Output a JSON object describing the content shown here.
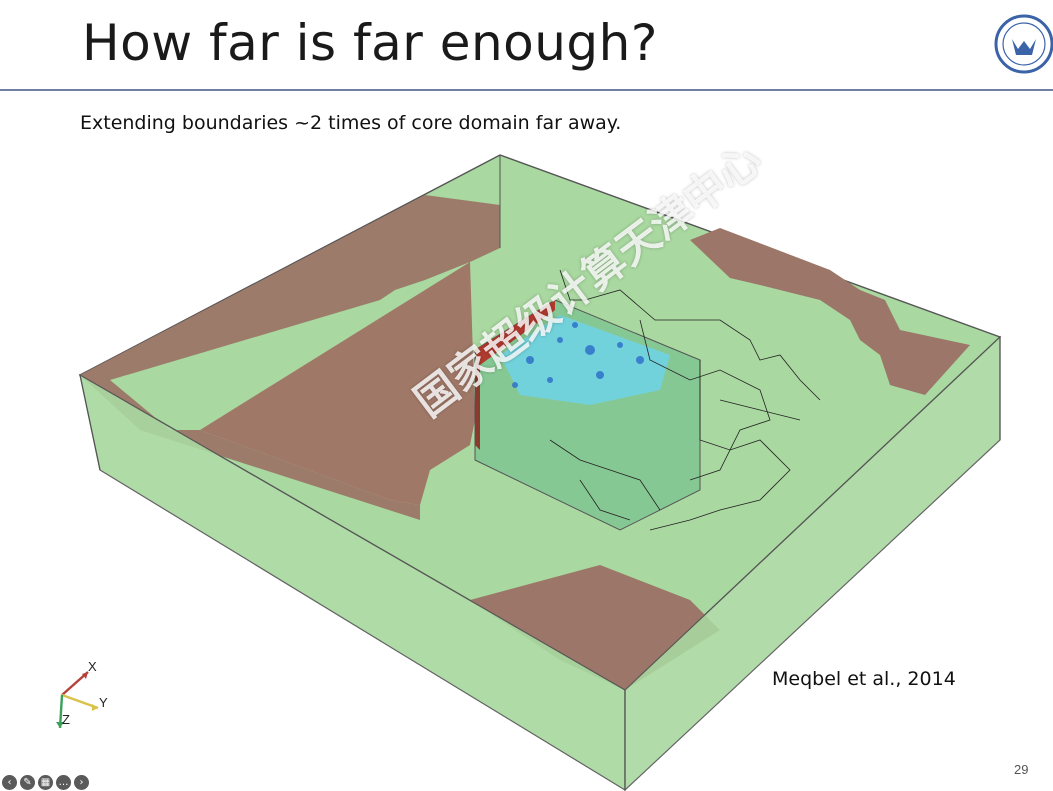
{
  "slide": {
    "title": "How far is far enough?",
    "subtitle": "Extending boundaries ~2 times of core domain far away.",
    "citation": "Meqbel et al., 2014",
    "page_number": "29",
    "watermark": "国家超级计算天津中心"
  },
  "axes_triad": {
    "x_label": "X",
    "y_label": "Y",
    "z_label": "Z"
  },
  "colors": {
    "green_face": "#9fd39a",
    "brown_face": "#9c7668",
    "core_blue": "#6fd4e8",
    "title_rule": "#6f7fa6"
  },
  "controls": [
    {
      "name": "previous-slide-button",
      "icon": "arrow-left-icon",
      "glyph": "‹"
    },
    {
      "name": "pointer-button",
      "icon": "pen-icon",
      "glyph": "✎"
    },
    {
      "name": "slides-overview-button",
      "icon": "grid-icon",
      "glyph": "▦"
    },
    {
      "name": "more-options-button",
      "icon": "more-icon",
      "glyph": "…"
    },
    {
      "name": "next-slide-button",
      "icon": "arrow-right-icon",
      "glyph": "›"
    }
  ]
}
